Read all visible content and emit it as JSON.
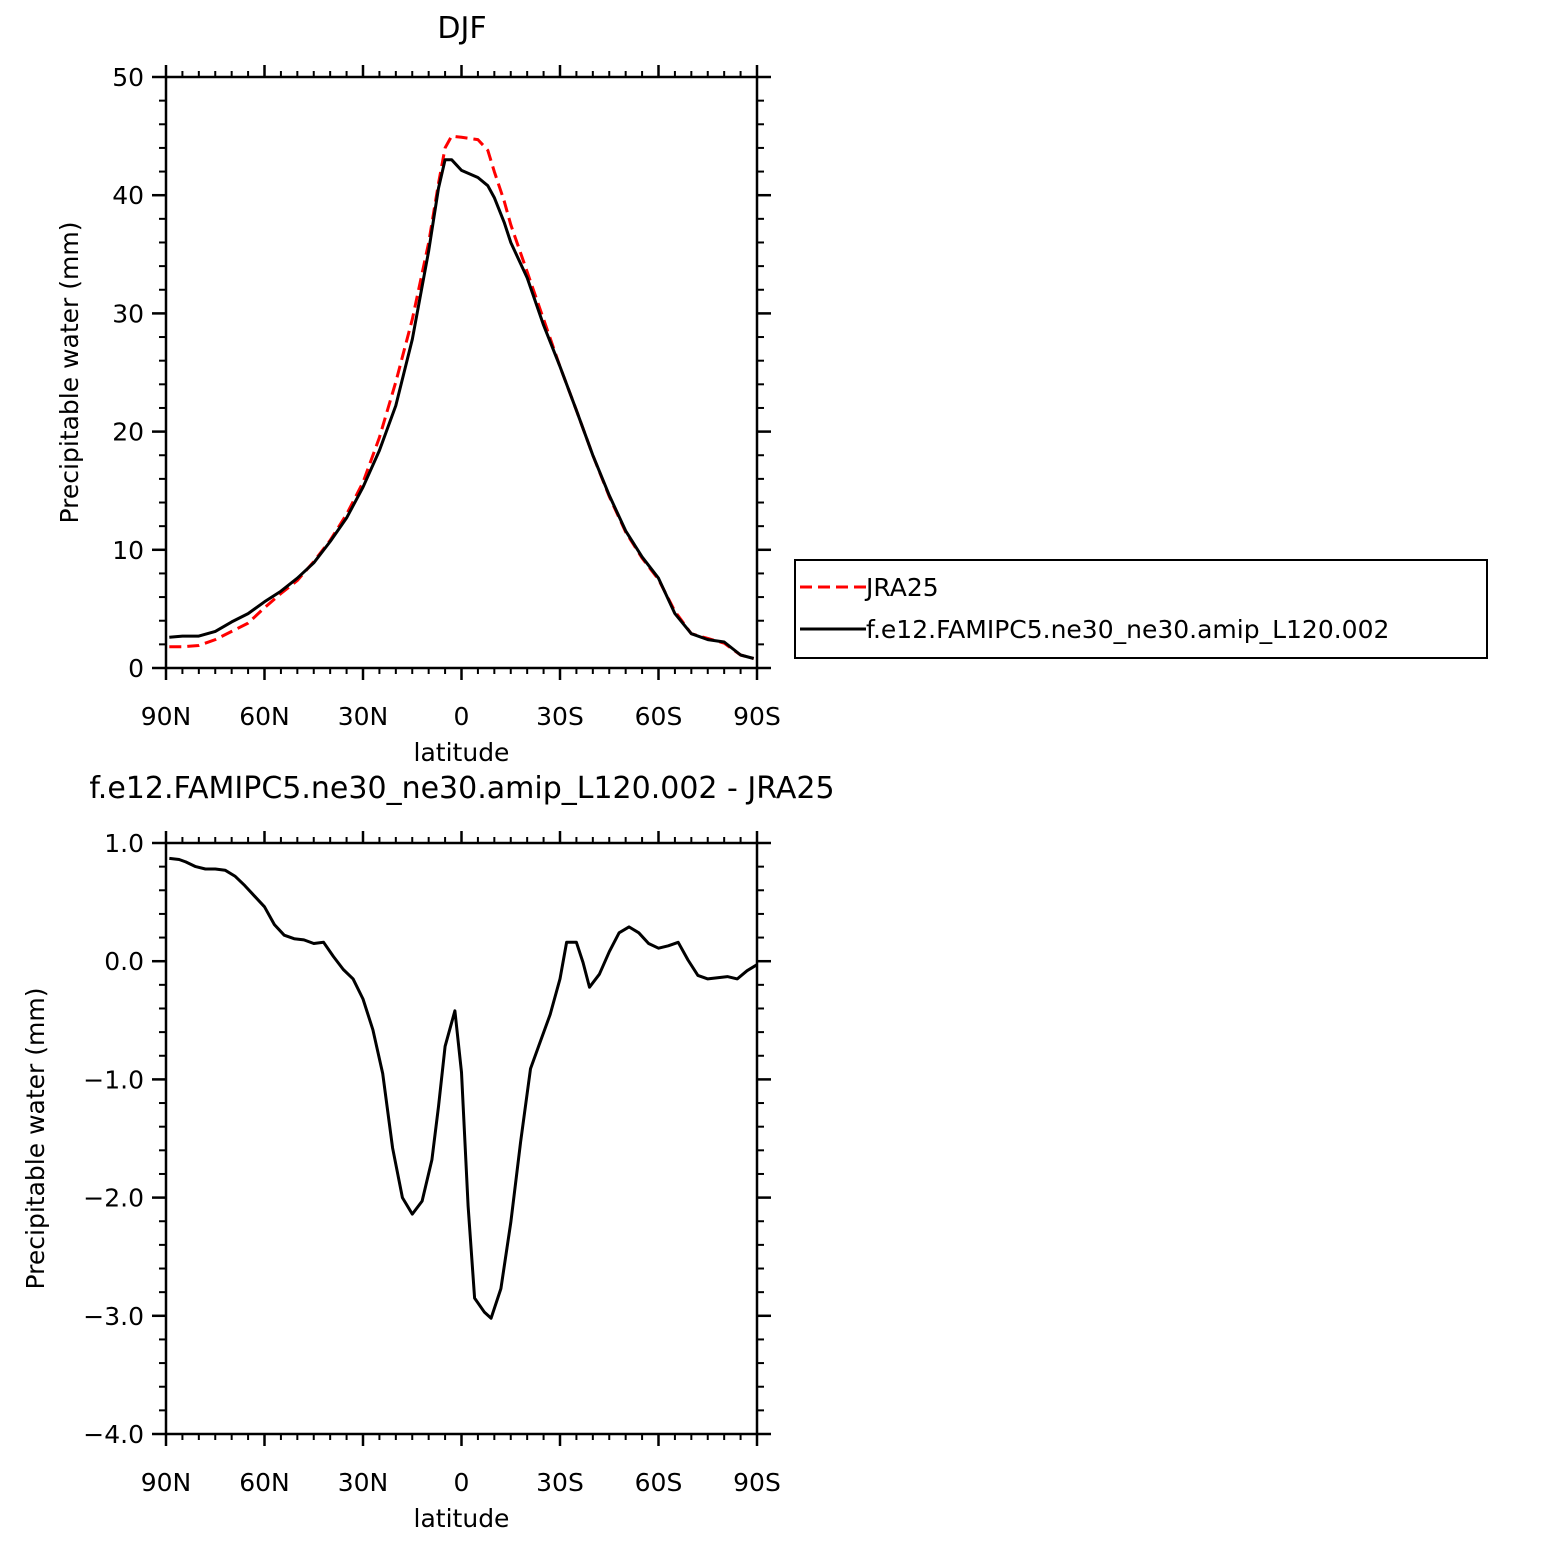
{
  "chart_data": [
    {
      "type": "line",
      "title": "DJF",
      "xlabel": "latitude",
      "ylabel": "Precipitable water (mm)",
      "xlim": [
        -90,
        90
      ],
      "ylim": [
        0,
        50
      ],
      "xticks": [
        {
          "value": -90,
          "label": "90N"
        },
        {
          "value": -60,
          "label": "60N"
        },
        {
          "value": -30,
          "label": "30N"
        },
        {
          "value": 0,
          "label": "0"
        },
        {
          "value": 30,
          "label": "30S"
        },
        {
          "value": 60,
          "label": "60S"
        },
        {
          "value": 90,
          "label": "90S"
        }
      ],
      "yticks": [
        {
          "value": 0,
          "label": "0"
        },
        {
          "value": 10,
          "label": "10"
        },
        {
          "value": 20,
          "label": "20"
        },
        {
          "value": 30,
          "label": "30"
        },
        {
          "value": 40,
          "label": "40"
        },
        {
          "value": 50,
          "label": "50"
        }
      ],
      "legend_position": "right",
      "series": [
        {
          "name": "JRA25",
          "color": "#ff0000",
          "style": "dashed",
          "x": [
            -89,
            -85,
            -80,
            -75,
            -70,
            -65,
            -60,
            -55,
            -50,
            -45,
            -40,
            -35,
            -30,
            -25,
            -20,
            -15,
            -10,
            -7,
            -5,
            -3,
            0,
            5,
            8,
            10,
            13,
            15,
            20,
            25,
            30,
            35,
            40,
            45,
            50,
            55,
            60,
            65,
            70,
            75,
            80,
            85,
            89
          ],
          "y": [
            1.8,
            1.8,
            1.9,
            2.4,
            3.1,
            3.8,
            5.1,
            6.3,
            7.4,
            9.0,
            10.8,
            13.0,
            15.7,
            19.5,
            24.2,
            29.5,
            36.0,
            41.0,
            44.0,
            45.0,
            44.9,
            44.7,
            43.8,
            42.0,
            39.5,
            37.5,
            33.5,
            29.5,
            25.5,
            21.8,
            18.0,
            14.5,
            11.5,
            9.3,
            7.5,
            4.8,
            2.9,
            2.5,
            2.1,
            1.1,
            0.8
          ]
        },
        {
          "name": "f.e12.FAMIPC5.ne30_ne30.amip_L120.002",
          "color": "#000000",
          "style": "solid",
          "x": [
            -89,
            -85,
            -80,
            -75,
            -70,
            -65,
            -60,
            -55,
            -50,
            -45,
            -40,
            -35,
            -30,
            -25,
            -20,
            -15,
            -10,
            -7,
            -5,
            -3,
            0,
            5,
            8,
            10,
            13,
            15,
            20,
            25,
            30,
            35,
            40,
            45,
            50,
            55,
            60,
            65,
            70,
            75,
            80,
            85,
            89
          ],
          "y": [
            2.6,
            2.7,
            2.7,
            3.1,
            3.9,
            4.6,
            5.6,
            6.5,
            7.6,
            8.9,
            10.7,
            12.7,
            15.3,
            18.4,
            22.2,
            27.8,
            35.3,
            40.6,
            43.0,
            43.0,
            42.1,
            41.5,
            40.8,
            39.8,
            37.7,
            36.0,
            33.0,
            29.0,
            25.5,
            21.8,
            18.0,
            14.6,
            11.6,
            9.4,
            7.6,
            4.6,
            2.9,
            2.4,
            2.2,
            1.1,
            0.8
          ]
        }
      ]
    },
    {
      "type": "line",
      "title": "f.e12.FAMIPC5.ne30_ne30.amip_L120.002 - JRA25",
      "xlabel": "latitude",
      "ylabel": "Precipitable water (mm)",
      "xlim": [
        -90,
        90
      ],
      "ylim": [
        -4.0,
        1.0
      ],
      "xticks": [
        {
          "value": -90,
          "label": "90N"
        },
        {
          "value": -60,
          "label": "60N"
        },
        {
          "value": -30,
          "label": "30N"
        },
        {
          "value": 0,
          "label": "0"
        },
        {
          "value": 30,
          "label": "30S"
        },
        {
          "value": 60,
          "label": "60S"
        },
        {
          "value": 90,
          "label": "90S"
        }
      ],
      "yticks": [
        {
          "value": -4.0,
          "label": "−4.0"
        },
        {
          "value": -3.0,
          "label": "−3.0"
        },
        {
          "value": -2.0,
          "label": "−2.0"
        },
        {
          "value": -1.0,
          "label": "−1.0"
        },
        {
          "value": 0.0,
          "label": "0.0"
        },
        {
          "value": 1.0,
          "label": "1.0"
        }
      ],
      "series": [
        {
          "color": "#000000",
          "style": "solid",
          "x": [
            -89,
            -86,
            -84,
            -81,
            -78,
            -75,
            -72,
            -69,
            -66,
            -63,
            -60,
            -57,
            -54,
            -51,
            -48,
            -45,
            -42,
            -39,
            -36,
            -33,
            -30,
            -27,
            -24,
            -21,
            -18,
            -15,
            -12,
            -9,
            -7,
            -5,
            -2,
            0,
            2,
            4,
            7,
            9,
            12,
            15,
            18,
            21,
            24,
            27,
            30,
            32,
            35,
            37,
            39,
            42,
            45,
            48,
            51,
            54,
            57,
            60,
            63,
            66,
            69,
            72,
            75,
            78,
            81,
            84,
            87,
            90
          ],
          "y": [
            0.87,
            0.86,
            0.84,
            0.8,
            0.78,
            0.78,
            0.77,
            0.72,
            0.64,
            0.55,
            0.46,
            0.31,
            0.22,
            0.19,
            0.18,
            0.15,
            0.16,
            0.04,
            -0.07,
            -0.15,
            -0.32,
            -0.58,
            -0.95,
            -1.58,
            -2.0,
            -2.14,
            -2.03,
            -1.68,
            -1.23,
            -0.72,
            -0.42,
            -0.94,
            -2.07,
            -2.85,
            -2.97,
            -3.02,
            -2.77,
            -2.21,
            -1.53,
            -0.91,
            -0.68,
            -0.45,
            -0.15,
            0.16,
            0.16,
            -0.01,
            -0.22,
            -0.11,
            0.08,
            0.24,
            0.29,
            0.24,
            0.15,
            0.11,
            0.13,
            0.16,
            0.01,
            -0.12,
            -0.15,
            -0.14,
            -0.13,
            -0.15,
            -0.08,
            -0.03
          ]
        }
      ]
    }
  ]
}
